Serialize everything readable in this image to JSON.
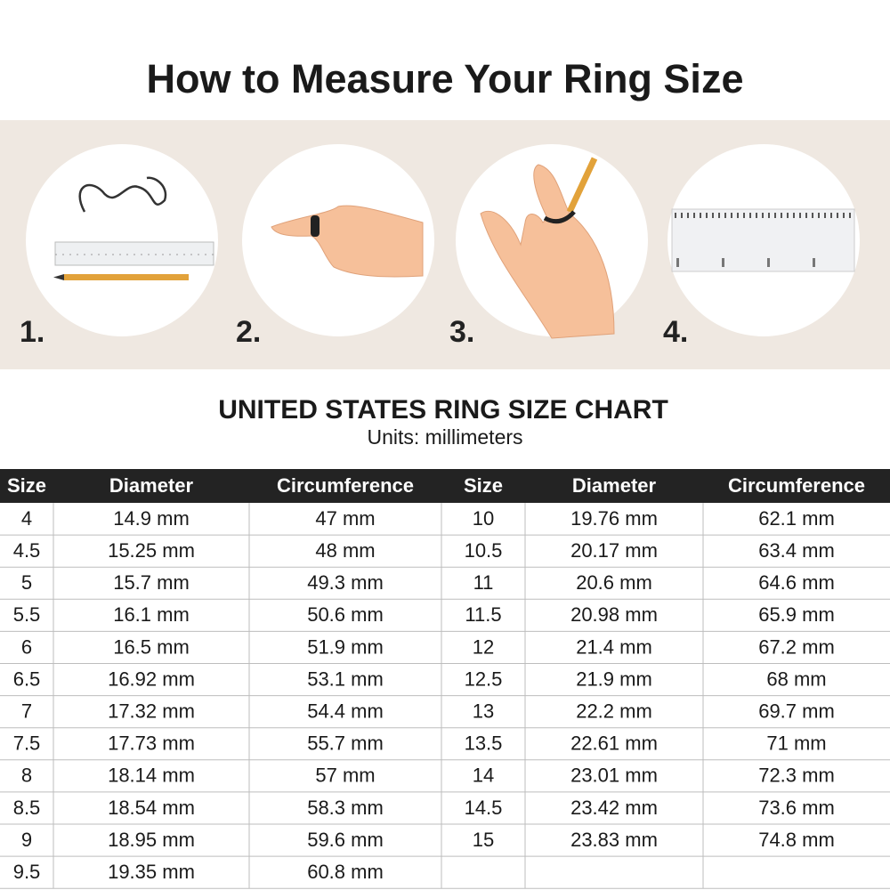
{
  "header": {
    "title": "How to Measure Your Ring Size"
  },
  "steps": [
    {
      "number": "1."
    },
    {
      "number": "2."
    },
    {
      "number": "3."
    },
    {
      "number": "4."
    }
  ],
  "chart": {
    "title": "UNITED STATES RING SIZE CHART",
    "subtitle": "Units: millimeters"
  },
  "table": {
    "header": [
      "Size",
      "Diameter",
      "Circumference",
      "Size",
      "Diameter",
      "Circumference"
    ],
    "rows": [
      [
        "4",
        "14.9 mm",
        "47 mm",
        "10",
        "19.76 mm",
        "62.1 mm"
      ],
      [
        "4.5",
        "15.25 mm",
        "48 mm",
        "10.5",
        "20.17 mm",
        "63.4 mm"
      ],
      [
        "5",
        "15.7 mm",
        "49.3 mm",
        "11",
        "20.6 mm",
        "64.6 mm"
      ],
      [
        "5.5",
        "16.1 mm",
        "50.6 mm",
        "11.5",
        "20.98 mm",
        "65.9 mm"
      ],
      [
        "6",
        "16.5 mm",
        "51.9 mm",
        "12",
        "21.4 mm",
        "67.2 mm"
      ],
      [
        "6.5",
        "16.92 mm",
        "53.1 mm",
        "12.5",
        "21.9 mm",
        "68 mm"
      ],
      [
        "7",
        "17.32 mm",
        "54.4 mm",
        "13",
        "22.2 mm",
        "69.7 mm"
      ],
      [
        "7.5",
        "17.73 mm",
        "55.7 mm",
        "13.5",
        "22.61 mm",
        "71 mm"
      ],
      [
        "8",
        "18.14 mm",
        "57 mm",
        "14",
        "23.01 mm",
        "72.3 mm"
      ],
      [
        "8.5",
        "18.54 mm",
        "58.3 mm",
        "14.5",
        "23.42 mm",
        "73.6 mm"
      ],
      [
        "9",
        "18.95 mm",
        "59.6 mm",
        "15",
        "23.83 mm",
        "74.8 mm"
      ],
      [
        "9.5",
        "19.35 mm",
        "60.8 mm"
      ]
    ]
  }
}
